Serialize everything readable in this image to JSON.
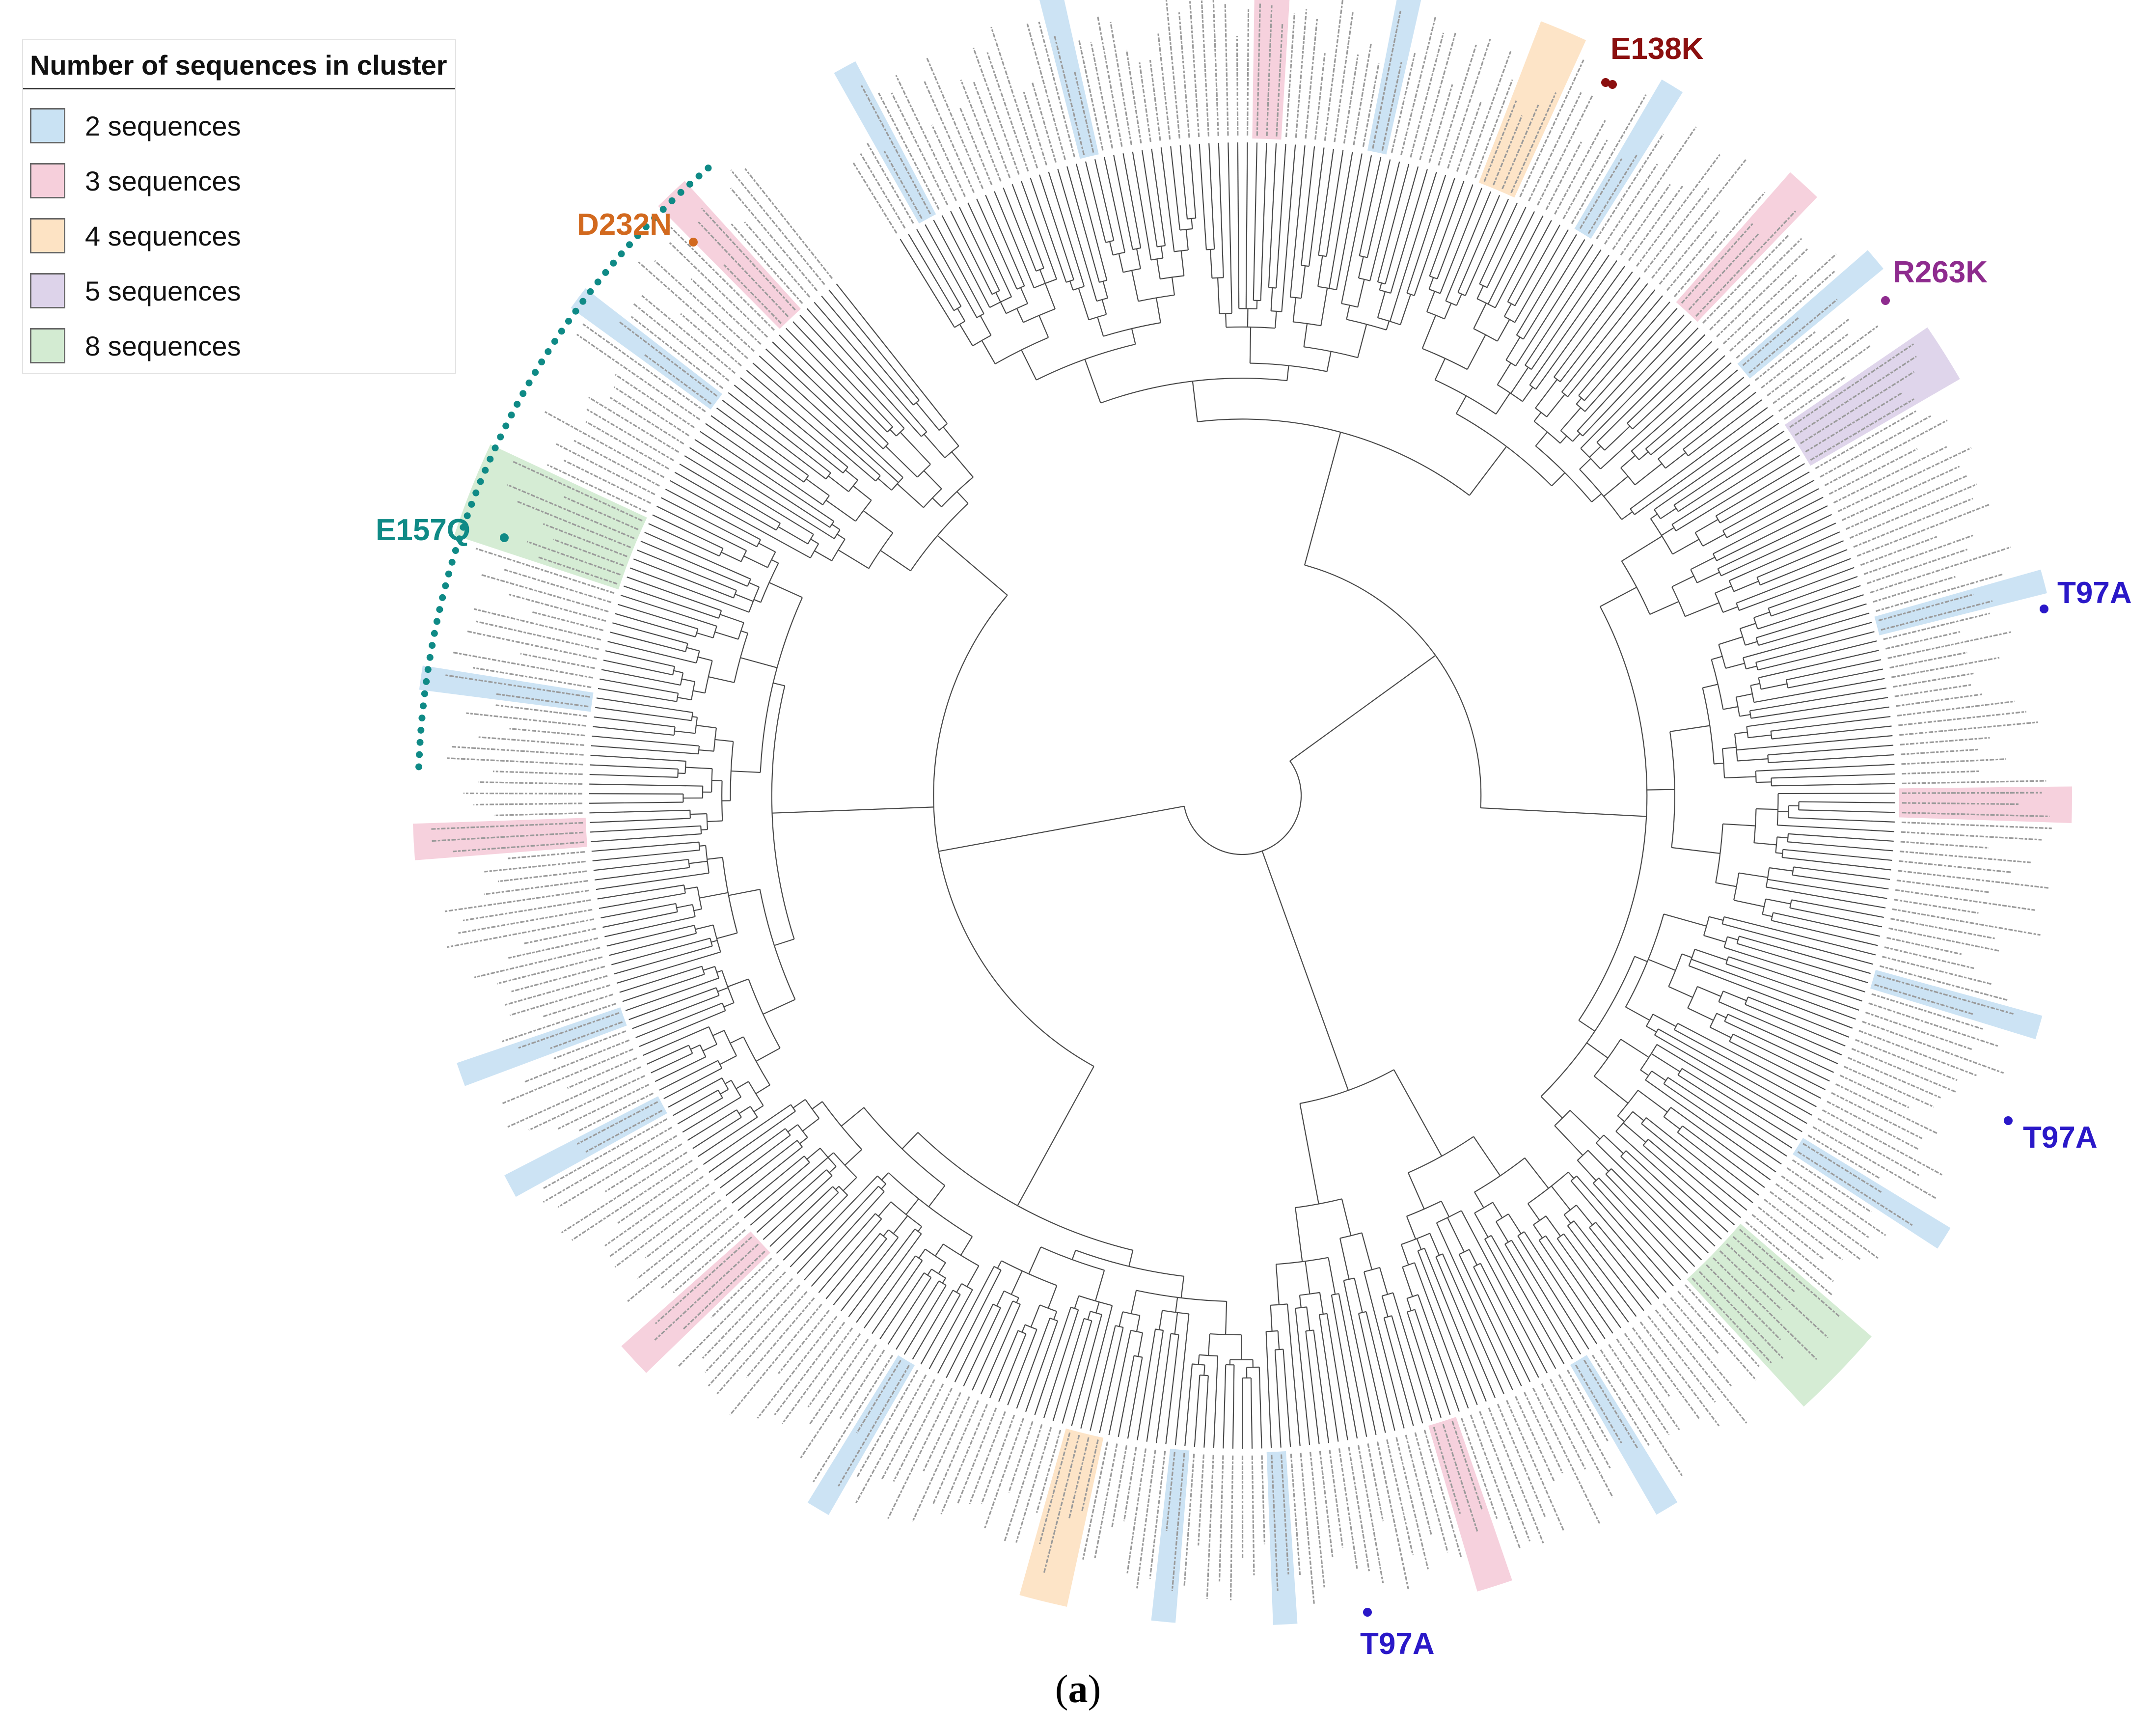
{
  "legend": {
    "title": "Number of sequences in cluster",
    "items": [
      {
        "label": "2 sequences",
        "color": "#c9e2f3"
      },
      {
        "label": "3 sequences",
        "color": "#f6cfdb"
      },
      {
        "label": "4 sequences",
        "color": "#fde3c4"
      },
      {
        "label": "5 sequences",
        "color": "#ddd3ea"
      },
      {
        "label": "8 sequences",
        "color": "#d3ebd2"
      }
    ]
  },
  "mutations": [
    {
      "label": "E138K",
      "color": "#8b0f0f"
    },
    {
      "label": "D232N",
      "color": "#d2691e"
    },
    {
      "label": "R263K",
      "color": "#8e2b8e"
    },
    {
      "label": "E157Q",
      "color": "#0f8a86"
    },
    {
      "label": "T97A",
      "color": "#2a18c8"
    },
    {
      "label": "T97A",
      "color": "#2a18c8"
    },
    {
      "label": "T97A",
      "color": "#2a18c8"
    }
  ],
  "caption": {
    "open": "(",
    "letter": "a",
    "close": ")"
  },
  "tree_colors": {
    "branch": "#4a4a4a",
    "tip_text": "#9a9a9a"
  }
}
